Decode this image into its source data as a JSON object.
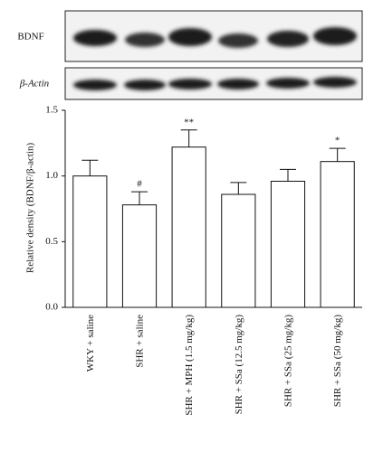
{
  "blot": {
    "rows": [
      "BDNF",
      "β-Actin"
    ]
  },
  "chart_data": {
    "type": "bar",
    "y_label": "Relative density (BDNF/β-actin)",
    "categories": [
      "WKY + saline",
      "SHR + saline",
      "SHR + MPH (1.5 mg/kg)",
      "SHR + SSa (12.5 mg/kg)",
      "SHR + SSa (25 mg/kg)",
      "SHR + SSa (50 mg/kg)"
    ],
    "values": [
      1.0,
      0.78,
      1.22,
      0.86,
      0.96,
      1.11
    ],
    "errors": [
      0.12,
      0.1,
      0.13,
      0.09,
      0.09,
      0.1
    ],
    "significance": [
      null,
      "#",
      "**",
      null,
      null,
      "*"
    ],
    "color": "#ffffff",
    "ylim": [
      0,
      1.5
    ],
    "yticks": [
      {
        "value": 0,
        "label": "0.0"
      },
      {
        "value": 0.5,
        "label": "0.5"
      },
      {
        "value": 1,
        "label": "1.0"
      },
      {
        "value": 1.5,
        "label": "1.5"
      }
    ],
    "grid": false
  }
}
